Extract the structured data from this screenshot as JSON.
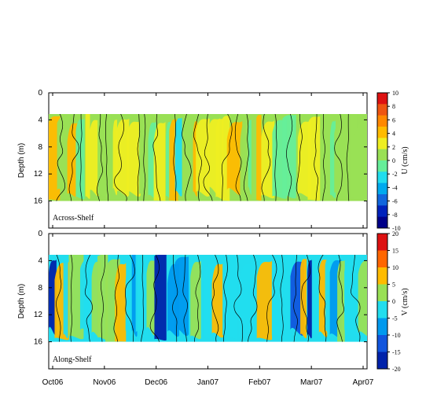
{
  "chart_data": [
    {
      "type": "heatmap",
      "title": "",
      "annotation": "Across-Shelf",
      "xlabel": "",
      "ylabel": "Depth (m)",
      "x_ticks": [
        "Oct06",
        "Nov06",
        "Dec06",
        "Jan07",
        "Feb07",
        "Mar07",
        "Apr07"
      ],
      "y_ticks": [
        0,
        4,
        8,
        12,
        16
      ],
      "ylim": [
        0,
        20
      ],
      "data_depth_range": [
        3,
        16
      ],
      "colorbar": {
        "label": "U (cm/s)",
        "ticks": [
          10,
          8,
          6,
          4,
          2,
          0,
          -2,
          -4,
          -6,
          -8,
          -10
        ],
        "range": [
          -10,
          10
        ],
        "colors": [
          "#dd1111",
          "#ee5511",
          "#ff8800",
          "#ffbb00",
          "#eeee22",
          "#99e055",
          "#66ee99",
          "#22ddee",
          "#00aaee",
          "#1166dd",
          "#0022bb",
          "#000088"
        ]
      },
      "field_summary": "Across-shelf velocity mostly between -2 and 2 cm/s, with weak positive bands up to ~4 cm/s at depth and weak negative bands near the surface"
    },
    {
      "type": "heatmap",
      "title": "",
      "annotation": "Along-Shelf",
      "xlabel": "",
      "ylabel": "Depth (m)",
      "x_ticks": [
        "Oct06",
        "Nov06",
        "Dec06",
        "Jan07",
        "Feb07",
        "Mar07",
        "Apr07"
      ],
      "y_ticks": [
        0,
        4,
        8,
        12,
        16
      ],
      "ylim": [
        0,
        20
      ],
      "data_depth_range": [
        3,
        16
      ],
      "colorbar": {
        "label": "V (cm/s)",
        "ticks": [
          20,
          15,
          10,
          5,
          0,
          -5,
          -10,
          -15,
          -20
        ],
        "range": [
          -20,
          20
        ],
        "colors": [
          "#dd1111",
          "#ff6600",
          "#ffbb00",
          "#99e055",
          "#22ddee",
          "#0099ee",
          "#1155dd",
          "#0022aa"
        ]
      },
      "field_summary": "Along-shelf velocity alternating between negative bands (-5 to -15 cm/s) and positive bands (0 to 10 cm/s), with a strong positive event near Mar07"
    }
  ]
}
